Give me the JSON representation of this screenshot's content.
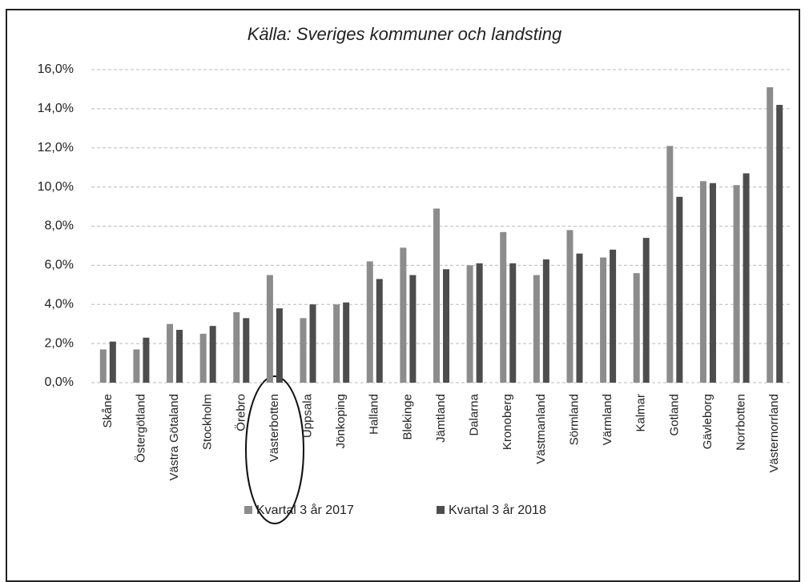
{
  "chart_data": {
    "type": "bar",
    "title": "Källa: Sveriges kommuner och landsting",
    "categories": [
      "Skåne",
      "Östergötland",
      "Västra Götaland",
      "Stockholm",
      "Örebro",
      "Västerbotten",
      "Uppsala",
      "Jönkoping",
      "Halland",
      "Blekinge",
      "Jämtland",
      "Dalarna",
      "Kronoberg",
      "Västmanland",
      "Sörmland",
      "Värmland",
      "Kalmar",
      "Gotland",
      "Gävleborg",
      "Norrbotten",
      "Västernorrland"
    ],
    "series": [
      {
        "name": "Kvartal 3 år 2017",
        "color": "#8c8c8c",
        "values": [
          1.7,
          1.7,
          3.0,
          2.5,
          3.6,
          5.5,
          3.3,
          4.0,
          6.2,
          6.9,
          8.9,
          6.0,
          7.7,
          5.5,
          7.8,
          6.4,
          5.6,
          12.1,
          10.3,
          10.1,
          15.1
        ]
      },
      {
        "name": "Kvartal 3 år 2018",
        "color": "#4d4d4d",
        "values": [
          2.1,
          2.3,
          2.7,
          2.9,
          3.3,
          3.8,
          4.0,
          4.1,
          5.3,
          5.5,
          5.8,
          6.1,
          6.1,
          6.3,
          6.6,
          6.8,
          7.4,
          9.5,
          10.2,
          10.7,
          14.2
        ]
      }
    ],
    "ylim": [
      0,
      16
    ],
    "yticks": [
      {
        "value": 0,
        "label": "0,0%"
      },
      {
        "value": 2,
        "label": "2,0%"
      },
      {
        "value": 4,
        "label": "4,0%"
      },
      {
        "value": 6,
        "label": "6,0%"
      },
      {
        "value": 8,
        "label": "8,0%"
      },
      {
        "value": 10,
        "label": "10,0%"
      },
      {
        "value": 12,
        "label": "12,0%"
      },
      {
        "value": 14,
        "label": "14,0%"
      },
      {
        "value": 16,
        "label": "16,0%"
      }
    ],
    "grid": true
  }
}
